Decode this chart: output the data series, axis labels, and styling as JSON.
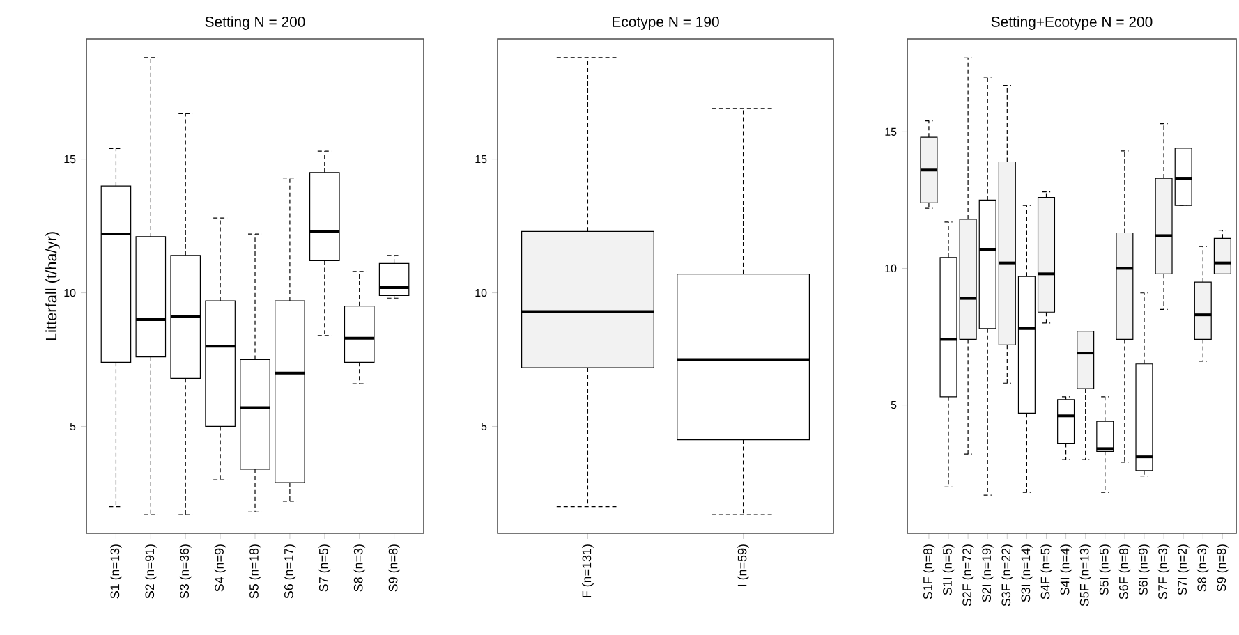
{
  "chart_data": [
    {
      "type": "box",
      "title": "Setting N = 200",
      "ylabel": "Litterfall (t/ha/yr)",
      "categories": [
        "S1 (n=13)",
        "S2 (n=91)",
        "S3 (n=36)",
        "S4 (n=9)",
        "S5 (n=18)",
        "S6 (n=17)",
        "S7 (n=5)",
        "S8 (n=3)",
        "S9 (n=8)"
      ],
      "ylim": [
        1.0,
        19.5
      ],
      "yticks": [
        5,
        10,
        15
      ],
      "series": [
        {
          "color": "#ffffff",
          "boxes": [
            {
              "low": 2.0,
              "q1": 7.4,
              "median": 12.2,
              "q3": 14.0,
              "high": 15.4
            },
            {
              "low": 1.7,
              "q1": 7.6,
              "median": 9.0,
              "q3": 12.1,
              "high": 18.8
            },
            {
              "low": 1.7,
              "q1": 6.8,
              "median": 9.1,
              "q3": 11.4,
              "high": 16.7
            },
            {
              "low": 3.0,
              "q1": 5.0,
              "median": 8.0,
              "q3": 9.7,
              "high": 12.8
            },
            {
              "low": 1.8,
              "q1": 3.4,
              "median": 5.7,
              "q3": 7.5,
              "high": 12.2
            },
            {
              "low": 2.2,
              "q1": 2.9,
              "median": 7.0,
              "q3": 9.7,
              "high": 14.3
            },
            {
              "low": 8.4,
              "q1": 11.2,
              "median": 12.3,
              "q3": 14.5,
              "high": 15.3
            },
            {
              "low": 6.6,
              "q1": 7.4,
              "median": 8.3,
              "q3": 9.5,
              "high": 10.8
            },
            {
              "low": 9.8,
              "q1": 9.9,
              "median": 10.2,
              "q3": 11.1,
              "high": 11.4
            }
          ]
        }
      ]
    },
    {
      "type": "box",
      "title": "Ecotype N = 190",
      "categories": [
        "F (n=131)",
        "I (n=59)"
      ],
      "ylim": [
        1.0,
        19.5
      ],
      "yticks": [
        5,
        10,
        15
      ],
      "series": [
        {
          "color": "#f2f2f2",
          "boxes": [
            {
              "low": 2.0,
              "q1": 7.2,
              "median": 9.3,
              "q3": 12.3,
              "high": 18.8
            },
            null
          ]
        },
        {
          "color": "#ffffff",
          "boxes": [
            null,
            {
              "low": 1.7,
              "q1": 4.5,
              "median": 7.5,
              "q3": 10.7,
              "high": 16.9
            }
          ]
        }
      ]
    },
    {
      "type": "box",
      "title": "Setting+Ecotype N = 200",
      "categories": [
        "S1F (n=8)",
        "S1I (n=5)",
        "S2F (n=72)",
        "S2I (n=19)",
        "S3F (n=22)",
        "S3I (n=14)",
        "S4F (n=5)",
        "S4I (n=4)",
        "S5F (n=13)",
        "S5I (n=5)",
        "S6F (n=8)",
        "S6I (n=9)",
        "S7F (n=3)",
        "S7I (n=2)",
        "S8 (n=3)",
        "S9 (n=8)"
      ],
      "ylim": [
        0.3,
        18.4
      ],
      "yticks": [
        5,
        10,
        15
      ],
      "series": [
        {
          "color": "#f2f2f2",
          "boxes": [
            {
              "low": 12.2,
              "q1": 12.4,
              "median": 13.6,
              "q3": 14.8,
              "high": 15.4
            },
            null,
            {
              "low": 3.2,
              "q1": 7.4,
              "median": 8.9,
              "q3": 11.8,
              "high": 17.7
            },
            null,
            {
              "low": 5.8,
              "q1": 7.2,
              "median": 10.2,
              "q3": 13.9,
              "high": 16.7
            },
            null,
            {
              "low": 8.0,
              "q1": 8.4,
              "median": 9.8,
              "q3": 12.6,
              "high": 12.8
            },
            null,
            {
              "low": 3.0,
              "q1": 5.6,
              "median": 6.9,
              "q3": 7.7,
              "high": 7.7
            },
            null,
            {
              "low": 2.9,
              "q1": 7.4,
              "median": 10.0,
              "q3": 11.3,
              "high": 14.3
            },
            null,
            {
              "low": 8.5,
              "q1": 9.8,
              "median": 11.2,
              "q3": 13.3,
              "high": 15.3
            },
            null,
            {
              "low": 6.6,
              "q1": 7.4,
              "median": 8.3,
              "q3": 9.5,
              "high": 10.8
            },
            {
              "low": 9.8,
              "q1": 9.8,
              "median": 10.2,
              "q3": 11.1,
              "high": 11.4
            }
          ]
        },
        {
          "color": "#ffffff",
          "boxes": [
            null,
            {
              "low": 2.0,
              "q1": 5.3,
              "median": 7.4,
              "q3": 10.4,
              "high": 11.7
            },
            null,
            {
              "low": 1.7,
              "q1": 7.8,
              "median": 10.7,
              "q3": 12.5,
              "high": 17.0
            },
            null,
            {
              "low": 1.8,
              "q1": 4.7,
              "median": 7.8,
              "q3": 9.7,
              "high": 12.3
            },
            null,
            {
              "low": 3.0,
              "q1": 3.6,
              "median": 4.6,
              "q3": 5.2,
              "high": 5.3
            },
            null,
            {
              "low": 1.8,
              "q1": 3.3,
              "median": 3.4,
              "q3": 4.4,
              "high": 5.3
            },
            null,
            {
              "low": 2.4,
              "q1": 2.6,
              "median": 3.1,
              "q3": 6.5,
              "high": 9.1
            },
            null,
            {
              "low": 12.3,
              "q1": 12.3,
              "median": 13.3,
              "q3": 14.4,
              "high": 14.4
            },
            null,
            null
          ]
        }
      ]
    }
  ]
}
